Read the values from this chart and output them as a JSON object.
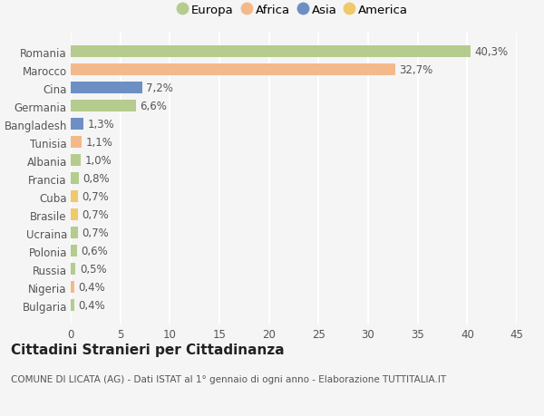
{
  "countries": [
    "Romania",
    "Marocco",
    "Cina",
    "Germania",
    "Bangladesh",
    "Tunisia",
    "Albania",
    "Francia",
    "Cuba",
    "Brasile",
    "Ucraina",
    "Polonia",
    "Russia",
    "Nigeria",
    "Bulgaria"
  ],
  "values": [
    40.3,
    32.7,
    7.2,
    6.6,
    1.3,
    1.1,
    1.0,
    0.8,
    0.7,
    0.7,
    0.7,
    0.6,
    0.5,
    0.4,
    0.4
  ],
  "labels": [
    "40,3%",
    "32,7%",
    "7,2%",
    "6,6%",
    "1,3%",
    "1,1%",
    "1,0%",
    "0,8%",
    "0,7%",
    "0,7%",
    "0,7%",
    "0,6%",
    "0,5%",
    "0,4%",
    "0,4%"
  ],
  "continents": [
    "Europa",
    "Africa",
    "Asia",
    "Europa",
    "Asia",
    "Africa",
    "Europa",
    "Europa",
    "America",
    "America",
    "Europa",
    "Europa",
    "Europa",
    "Africa",
    "Europa"
  ],
  "colors": {
    "Europa": "#b5cc8e",
    "Africa": "#f4b98a",
    "Asia": "#6d8fc4",
    "America": "#f0c96a"
  },
  "legend_order": [
    "Europa",
    "Africa",
    "Asia",
    "America"
  ],
  "title": "Cittadini Stranieri per Cittadinanza",
  "subtitle": "COMUNE DI LICATA (AG) - Dati ISTAT al 1° gennaio di ogni anno - Elaborazione TUTTITALIA.IT",
  "xlim": [
    0,
    45
  ],
  "xticks": [
    0,
    5,
    10,
    15,
    20,
    25,
    30,
    35,
    40,
    45
  ],
  "bg_color": "#f5f5f5",
  "grid_color": "#ffffff",
  "bar_height": 0.65,
  "label_fontsize": 8.5,
  "tick_fontsize": 8.5,
  "title_fontsize": 11,
  "subtitle_fontsize": 7.5
}
